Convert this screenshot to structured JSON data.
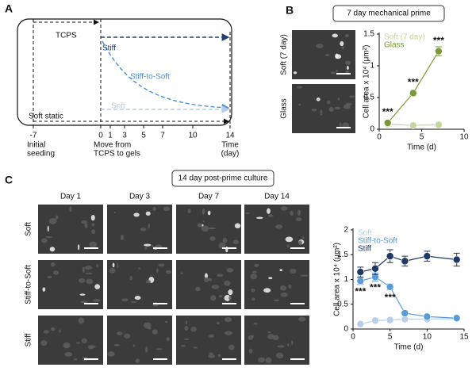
{
  "panels": {
    "a": "A",
    "b": "B",
    "c": "C"
  },
  "diagram": {
    "labels": {
      "tcps": "TCPS",
      "stiff": "Stiff",
      "stiff_to_soft": "Stiff-to-Soft",
      "soft": "Soft",
      "soft_static": "Soft static"
    },
    "ticks": [
      "-7",
      "0",
      "1",
      "3",
      "5",
      "7",
      "10",
      "14"
    ],
    "notes": {
      "seeding": [
        "Initial",
        "seeding"
      ],
      "move": [
        "Move from",
        "TCPS to gels"
      ],
      "time": [
        "Time",
        "(day)"
      ]
    }
  },
  "panel_b": {
    "title": "7 day mechanical prime",
    "image_rows": [
      "Soft (7 day)",
      "Glass"
    ]
  },
  "panel_c": {
    "title": "14 day post-prime culture",
    "columns": [
      "Day 1",
      "Day 3",
      "Day 7",
      "Day 14"
    ],
    "rows": [
      "Soft",
      "Stiff-to-Soft",
      "Stiff"
    ]
  },
  "chart_data": [
    {
      "type": "line",
      "x_label": "Time (d)",
      "y_label": "Cell area x 10⁴ (μm²)",
      "legend": "upper left",
      "x": [
        1,
        4,
        7
      ],
      "xlim": [
        0,
        10
      ],
      "xticks": [
        0,
        5,
        10
      ],
      "ylim": [
        0,
        1.5
      ],
      "yticks": [
        0,
        0.5,
        1,
        1.5
      ],
      "series": [
        {
          "name": "Soft (7 day)",
          "color": "#c3d79c",
          "values": [
            0.08,
            0.06,
            0.07
          ],
          "errors": [
            0.02,
            0.02,
            0.02
          ]
        },
        {
          "name": "Glass",
          "color": "#7a9a3a",
          "values": [
            0.1,
            0.57,
            1.23
          ],
          "errors": [
            0.03,
            0.04,
            0.07
          ],
          "annotations": [
            "***",
            "***",
            "***"
          ]
        }
      ]
    },
    {
      "type": "line",
      "x_label": "Time (d)",
      "y_label": "Cell area x 10⁴ (μm²)",
      "legend": "upper left",
      "x": [
        1,
        3,
        5,
        7,
        10,
        14
      ],
      "xlim": [
        0,
        15
      ],
      "xticks": [
        0,
        5,
        10,
        15
      ],
      "ylim": [
        0,
        2
      ],
      "yticks": [
        0,
        0.5,
        1,
        1.5,
        2
      ],
      "series": [
        {
          "name": "Soft",
          "color": "#b9cfe9",
          "values": [
            0.1,
            0.17,
            0.18,
            0.2,
            0.2,
            0.21
          ],
          "errors": [
            0.03,
            0.03,
            0.03,
            0.03,
            0.03,
            0.03
          ]
        },
        {
          "name": "Stiff-to-Soft",
          "color": "#5b9bd5",
          "values": [
            0.97,
            1.05,
            0.85,
            0.32,
            0.25,
            0.22
          ],
          "errors": [
            0.07,
            0.08,
            0.06,
            0.04,
            0.03,
            0.03
          ],
          "annotations": [
            "***",
            "***",
            "***"
          ]
        },
        {
          "name": "Stiff",
          "color": "#1f3864",
          "values": [
            1.15,
            1.22,
            1.47,
            1.37,
            1.47,
            1.4
          ],
          "errors": [
            0.1,
            0.12,
            0.13,
            0.1,
            0.1,
            0.13
          ]
        }
      ]
    }
  ]
}
